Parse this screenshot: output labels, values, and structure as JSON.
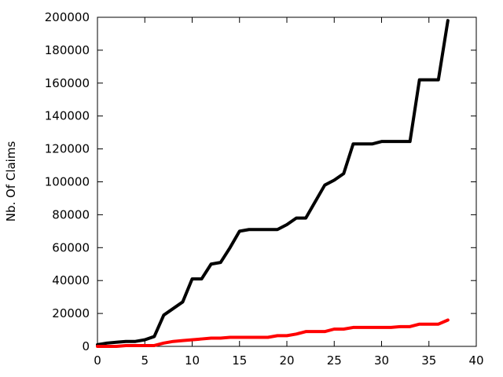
{
  "chart_data": {
    "type": "line",
    "title": "",
    "xlabel": "",
    "ylabel": "Nb. Of Claims",
    "xlim": [
      0,
      40
    ],
    "ylim": [
      0,
      200000
    ],
    "xticks": [
      0,
      5,
      10,
      15,
      20,
      25,
      30,
      35,
      40
    ],
    "yticks": [
      0,
      20000,
      40000,
      60000,
      80000,
      100000,
      120000,
      140000,
      160000,
      180000,
      200000
    ],
    "grid": false,
    "legend": "none",
    "series": [
      {
        "color": "#000000",
        "points": [
          [
            0,
            1000
          ],
          [
            1,
            2000
          ],
          [
            2,
            2500
          ],
          [
            3,
            3000
          ],
          [
            4,
            3000
          ],
          [
            5,
            4000
          ],
          [
            6,
            6000
          ],
          [
            7,
            19000
          ],
          [
            8,
            23000
          ],
          [
            9,
            27000
          ],
          [
            10,
            41000
          ],
          [
            11,
            41000
          ],
          [
            12,
            50000
          ],
          [
            13,
            51000
          ],
          [
            14,
            60000
          ],
          [
            15,
            70000
          ],
          [
            16,
            71000
          ],
          [
            17,
            71000
          ],
          [
            18,
            71000
          ],
          [
            19,
            71000
          ],
          [
            20,
            74000
          ],
          [
            21,
            78000
          ],
          [
            22,
            78000
          ],
          [
            23,
            88000
          ],
          [
            24,
            98000
          ],
          [
            25,
            101000
          ],
          [
            26,
            105000
          ],
          [
            27,
            123000
          ],
          [
            28,
            123000
          ],
          [
            29,
            123000
          ],
          [
            30,
            124500
          ],
          [
            31,
            124500
          ],
          [
            32,
            124500
          ],
          [
            33,
            124500
          ],
          [
            34,
            162000
          ],
          [
            35,
            162000
          ],
          [
            36,
            162000
          ],
          [
            37,
            198000
          ]
        ]
      },
      {
        "color": "#ff0000",
        "points": [
          [
            0,
            0
          ],
          [
            1,
            0
          ],
          [
            2,
            0
          ],
          [
            3,
            500
          ],
          [
            4,
            500
          ],
          [
            5,
            500
          ],
          [
            6,
            500
          ],
          [
            7,
            2000
          ],
          [
            8,
            3000
          ],
          [
            9,
            3500
          ],
          [
            10,
            4000
          ],
          [
            11,
            4500
          ],
          [
            12,
            5000
          ],
          [
            13,
            5000
          ],
          [
            14,
            5500
          ],
          [
            15,
            5500
          ],
          [
            16,
            5500
          ],
          [
            17,
            5500
          ],
          [
            18,
            5500
          ],
          [
            19,
            6500
          ],
          [
            20,
            6500
          ],
          [
            21,
            7500
          ],
          [
            22,
            9000
          ],
          [
            23,
            9000
          ],
          [
            24,
            9000
          ],
          [
            25,
            10500
          ],
          [
            26,
            10500
          ],
          [
            27,
            11500
          ],
          [
            28,
            11500
          ],
          [
            29,
            11500
          ],
          [
            30,
            11500
          ],
          [
            31,
            11500
          ],
          [
            32,
            12000
          ],
          [
            33,
            12000
          ],
          [
            34,
            13500
          ],
          [
            35,
            13500
          ],
          [
            36,
            13500
          ],
          [
            37,
            16000
          ]
        ]
      }
    ]
  }
}
